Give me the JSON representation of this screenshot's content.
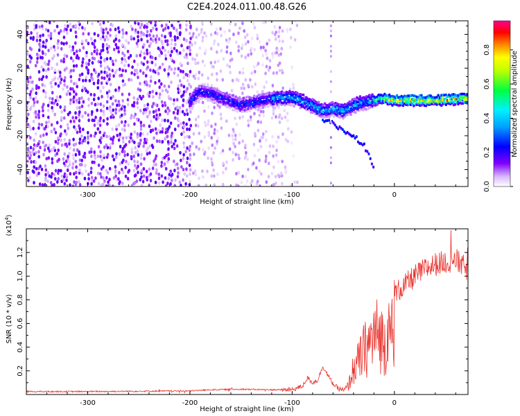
{
  "title": "C2E4.2024.011.00.48.G26",
  "chart_data": [
    {
      "type": "heatmap",
      "title": "C2E4.2024.011.00.48.G26",
      "xlabel": "Height of straight line (km)",
      "ylabel": "Frequency (Hz)",
      "xlim": [
        -360,
        72
      ],
      "ylim": [
        -50,
        48
      ],
      "xticks": [
        -300,
        -200,
        -100,
        0
      ],
      "yticks": [
        -40,
        -20,
        0,
        20,
        40
      ],
      "colorbar": {
        "label": "Normalized spectral amplitude",
        "range": [
          0.0,
          0.97
        ],
        "ticks": [
          0.0,
          0.2,
          0.4,
          0.6,
          0.8
        ],
        "colormap": [
          "#ffffff",
          "#8000ff",
          "#0000ff",
          "#00e5ff",
          "#00ff40",
          "#ffff00",
          "#ff8000",
          "#ff0000",
          "#ff0090"
        ]
      },
      "ridge": {
        "description_points_x": [
          -200,
          -190,
          -170,
          -150,
          -130,
          -110,
          -95,
          -80,
          -70,
          -60,
          -50,
          -40,
          -30,
          -20,
          -10,
          0,
          20,
          40,
          72
        ],
        "description_points_y": [
          0,
          7,
          3,
          -2,
          1,
          3,
          2,
          -2,
          -5,
          -4,
          -5,
          -2,
          0,
          1,
          2,
          1,
          1,
          1,
          2
        ],
        "lower_branch_x": [
          -70,
          -55,
          -40,
          -30,
          -25,
          -20
        ],
        "lower_branch_y": [
          -10,
          -15,
          -20,
          -25,
          -32,
          -38
        ]
      },
      "noise_region_x": [
        -360,
        -200
      ]
    },
    {
      "type": "line",
      "xlabel": "Height of straight line (km)",
      "ylabel": "SNR (10 * v/v)",
      "yscale_label": "(x10",
      "yscale_exp": "4",
      "xlim": [
        -360,
        72
      ],
      "ylim": [
        0,
        1.4
      ],
      "xticks": [
        -300,
        -200,
        -100,
        0
      ],
      "yticks": [
        0.2,
        0.4,
        0.6,
        0.8,
        1.0,
        1.2
      ],
      "color": "#e8302a",
      "series_envelope": {
        "x": [
          -360,
          -300,
          -250,
          -200,
          -180,
          -150,
          -120,
          -100,
          -90,
          -85,
          -80,
          -75,
          -70,
          -65,
          -60,
          -55,
          -50,
          -45,
          -40,
          -35,
          -30,
          -25,
          -20,
          -15,
          -10,
          -5,
          0,
          10,
          20,
          30,
          40,
          50,
          60,
          65,
          72
        ],
        "y": [
          0.025,
          0.025,
          0.028,
          0.03,
          0.04,
          0.045,
          0.04,
          0.04,
          0.07,
          0.14,
          0.1,
          0.12,
          0.24,
          0.16,
          0.09,
          0.05,
          0.04,
          0.1,
          0.3,
          0.38,
          0.5,
          0.58,
          0.68,
          0.7,
          0.6,
          0.7,
          0.85,
          0.92,
          1.0,
          1.06,
          1.1,
          1.12,
          1.14,
          1.1,
          1.05
        ]
      }
    }
  ]
}
